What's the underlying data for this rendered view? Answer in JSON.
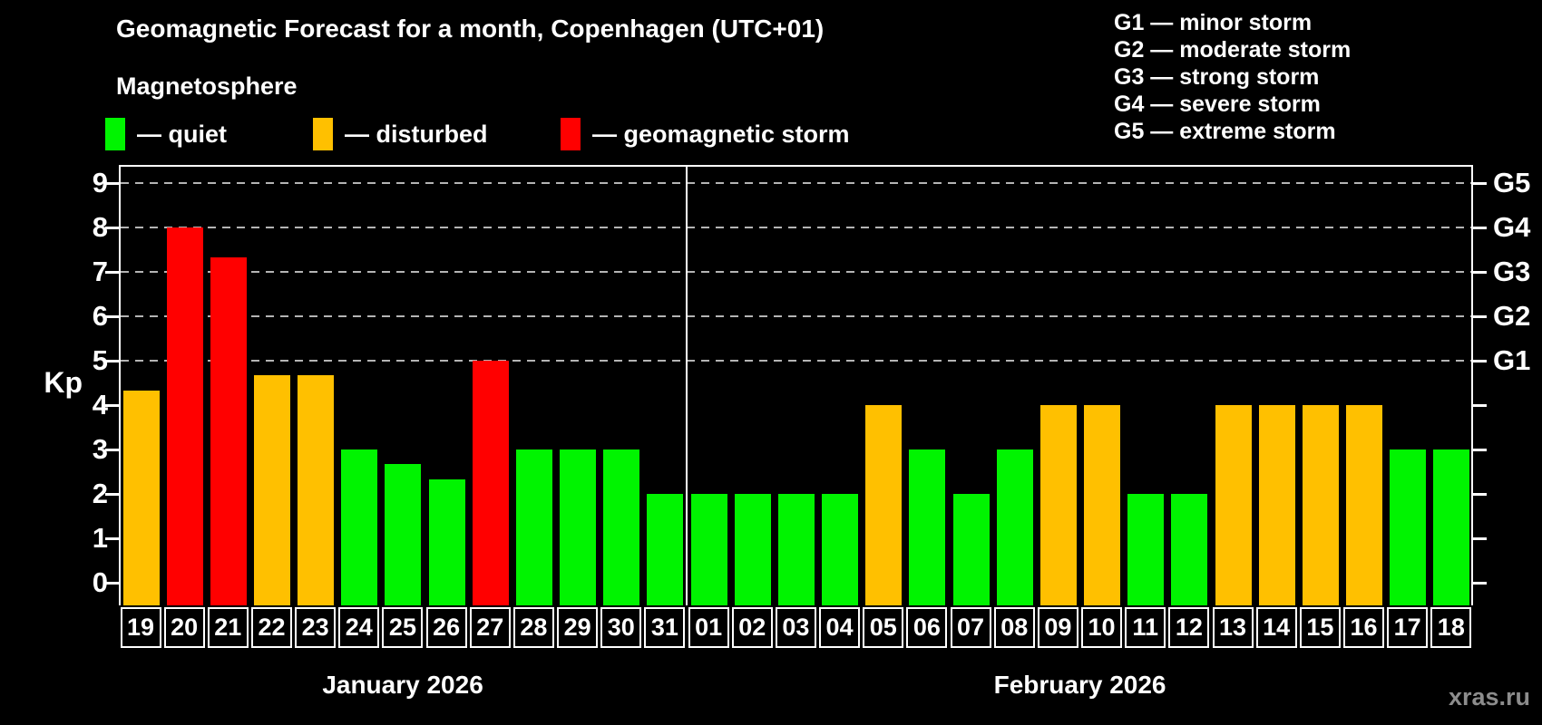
{
  "header": {
    "title": "Geomagnetic Forecast for a month, Copenhagen (UTC+01)",
    "subtitle": "Magnetosphere"
  },
  "color_legend": [
    {
      "key": "quiet",
      "label": "— quiet",
      "color": "#00f400"
    },
    {
      "key": "disturbed",
      "label": "— disturbed",
      "color": "#ffc000"
    },
    {
      "key": "storm",
      "label": "— geomagnetic storm",
      "color": "#ff0000"
    }
  ],
  "storm_legend": [
    {
      "label": "G1 — minor storm"
    },
    {
      "label": "G2 — moderate storm"
    },
    {
      "label": "G3 — strong storm"
    },
    {
      "label": "G4 — severe storm"
    },
    {
      "label": "G5 — extreme storm"
    }
  ],
  "watermark": "xras.ru",
  "chart_data": {
    "type": "bar",
    "title": "Geomagnetic Forecast for a month, Copenhagen (UTC+01)",
    "ylabel": "Kp",
    "ylim": [
      -0.5,
      9.4
    ],
    "grid": "dashed horizontal at Kp 5-9",
    "y_ticks": [
      0,
      1,
      2,
      3,
      4,
      5,
      6,
      7,
      8,
      9
    ],
    "grid_kp_levels": [
      5,
      6,
      7,
      8,
      9
    ],
    "right_axis_labels": [
      {
        "label": "G1",
        "kp": 5
      },
      {
        "label": "G2",
        "kp": 6
      },
      {
        "label": "G3",
        "kp": 7
      },
      {
        "label": "G4",
        "kp": 8
      },
      {
        "label": "G5",
        "kp": 9
      }
    ],
    "months": [
      {
        "label": "January 2026",
        "days": 13
      },
      {
        "label": "February 2026",
        "days": 18
      }
    ],
    "categories": [
      "19",
      "20",
      "21",
      "22",
      "23",
      "24",
      "25",
      "26",
      "27",
      "28",
      "29",
      "30",
      "31",
      "01",
      "02",
      "03",
      "04",
      "05",
      "06",
      "07",
      "08",
      "09",
      "10",
      "11",
      "12",
      "13",
      "14",
      "15",
      "16",
      "17",
      "18"
    ],
    "values": [
      4.33,
      8.0,
      7.33,
      4.67,
      4.67,
      3.0,
      2.67,
      2.33,
      5.0,
      3.0,
      3.0,
      3.0,
      2.0,
      2.0,
      2.0,
      2.0,
      2.0,
      4.0,
      3.0,
      2.0,
      3.0,
      4.0,
      4.0,
      2.0,
      2.0,
      4.0,
      4.0,
      4.0,
      4.0,
      3.0,
      3.0
    ],
    "statuses": [
      "disturbed",
      "storm",
      "storm",
      "disturbed",
      "disturbed",
      "quiet",
      "quiet",
      "quiet",
      "storm",
      "quiet",
      "quiet",
      "quiet",
      "quiet",
      "quiet",
      "quiet",
      "quiet",
      "quiet",
      "disturbed",
      "quiet",
      "quiet",
      "quiet",
      "disturbed",
      "disturbed",
      "quiet",
      "quiet",
      "disturbed",
      "disturbed",
      "disturbed",
      "disturbed",
      "quiet",
      "quiet"
    ],
    "colors": {
      "quiet": "#00f400",
      "disturbed": "#ffc000",
      "storm": "#ff0000"
    }
  }
}
